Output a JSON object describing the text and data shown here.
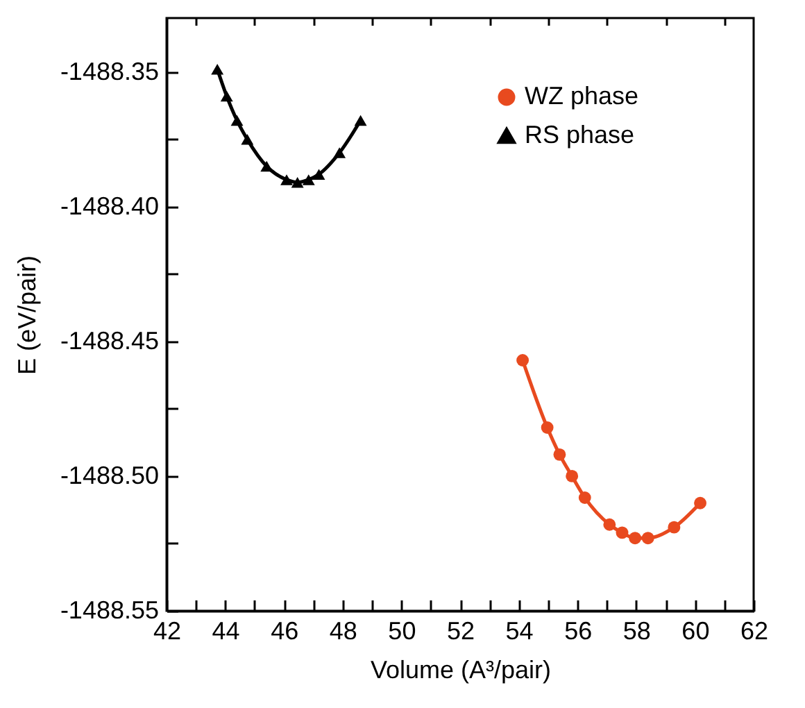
{
  "chart_data": {
    "type": "line",
    "xlabel": "Volume (A³/pair)",
    "ylabel": "E (eV/pair)",
    "xlim": [
      42,
      62
    ],
    "xticks": [
      42,
      {
        "value": 43,
        "label": null
      },
      44,
      {
        "value": 45,
        "label": null
      },
      46,
      {
        "value": 47,
        "label": null
      },
      48,
      {
        "value": 49,
        "label": null
      },
      50,
      {
        "value": 51,
        "label": null
      },
      52,
      {
        "value": 53,
        "label": null
      },
      54,
      {
        "value": 55,
        "label": null
      },
      56,
      {
        "value": 57,
        "label": null
      },
      58,
      {
        "value": 59,
        "label": null
      },
      60,
      {
        "value": 61,
        "label": null
      },
      62
    ],
    "ylim": [
      -1488.55,
      -1488.33
    ],
    "yticks": [
      {
        "value": -1488.55,
        "label": "-1488.55"
      },
      {
        "value": -1488.525,
        "label": null
      },
      {
        "value": -1488.5,
        "label": "-1488.50"
      },
      {
        "value": -1488.475,
        "label": null
      },
      {
        "value": -1488.45,
        "label": "-1488.45"
      },
      {
        "value": -1488.425,
        "label": null
      },
      {
        "value": -1488.4,
        "label": "-1488.40"
      },
      {
        "value": -1488.375,
        "label": null
      },
      {
        "value": -1488.35,
        "label": "-1488.35"
      }
    ],
    "legend": "top right",
    "grid": false,
    "series": [
      {
        "name": "WZ phase",
        "color": "#e84a1f",
        "marker": "circle",
        "x": [
          54.13,
          54.97,
          55.39,
          55.81,
          56.25,
          57.09,
          57.52,
          57.96,
          58.4,
          59.29,
          60.18
        ],
        "values": [
          -1488.457,
          -1488.482,
          -1488.492,
          -1488.5,
          -1488.508,
          -1488.518,
          -1488.521,
          -1488.523,
          -1488.523,
          -1488.519,
          -1488.51
        ]
      },
      {
        "name": "RS phase",
        "color": "#000000",
        "marker": "triangle",
        "x": [
          43.73,
          44.05,
          44.4,
          44.75,
          45.41,
          46.09,
          46.46,
          46.84,
          47.19,
          47.89,
          48.61
        ],
        "values": [
          -1488.349,
          -1488.359,
          -1488.368,
          -1488.375,
          -1488.385,
          -1488.39,
          -1488.391,
          -1488.39,
          -1488.388,
          -1488.38,
          -1488.368
        ]
      }
    ]
  }
}
